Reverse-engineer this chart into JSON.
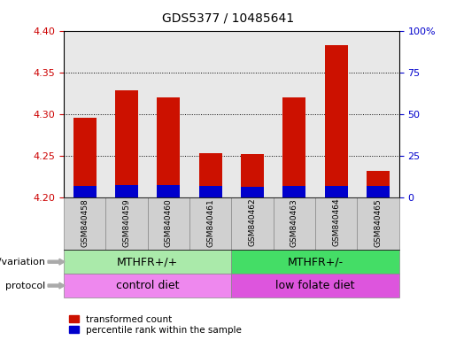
{
  "title": "GDS5377 / 10485641",
  "samples": [
    "GSM840458",
    "GSM840459",
    "GSM840460",
    "GSM840461",
    "GSM840462",
    "GSM840463",
    "GSM840464",
    "GSM840465"
  ],
  "red_values": [
    4.295,
    4.328,
    4.32,
    4.253,
    4.252,
    4.32,
    4.383,
    4.232
  ],
  "blue_values": [
    4.213,
    4.215,
    4.215,
    4.213,
    4.212,
    4.213,
    4.214,
    4.213
  ],
  "bar_base": 4.2,
  "left_ylim": [
    4.2,
    4.4
  ],
  "right_ylim": [
    0,
    100
  ],
  "left_yticks": [
    4.2,
    4.25,
    4.3,
    4.35,
    4.4
  ],
  "right_yticks": [
    0,
    25,
    50,
    75,
    100
  ],
  "right_yticklabels": [
    "0",
    "25",
    "50",
    "75",
    "100%"
  ],
  "left_tick_color": "#cc0000",
  "right_tick_color": "#0000cc",
  "red_color": "#cc1100",
  "blue_color": "#0000cc",
  "grid_color": "#000000",
  "genotype_groups": [
    {
      "label": "MTHFR+/+",
      "start": 0,
      "end": 4,
      "color": "#aaeaaa"
    },
    {
      "label": "MTHFR+/-",
      "start": 4,
      "end": 8,
      "color": "#44dd66"
    }
  ],
  "protocol_groups": [
    {
      "label": "control diet",
      "start": 0,
      "end": 4,
      "color": "#ee88ee"
    },
    {
      "label": "low folate diet",
      "start": 4,
      "end": 8,
      "color": "#dd55dd"
    }
  ],
  "legend_red_label": "transformed count",
  "legend_blue_label": "percentile rank within the sample",
  "xlabel_protocol": "protocol",
  "bar_width": 0.55,
  "bg_color": "#ffffff",
  "plot_bg_color": "#e8e8e8"
}
